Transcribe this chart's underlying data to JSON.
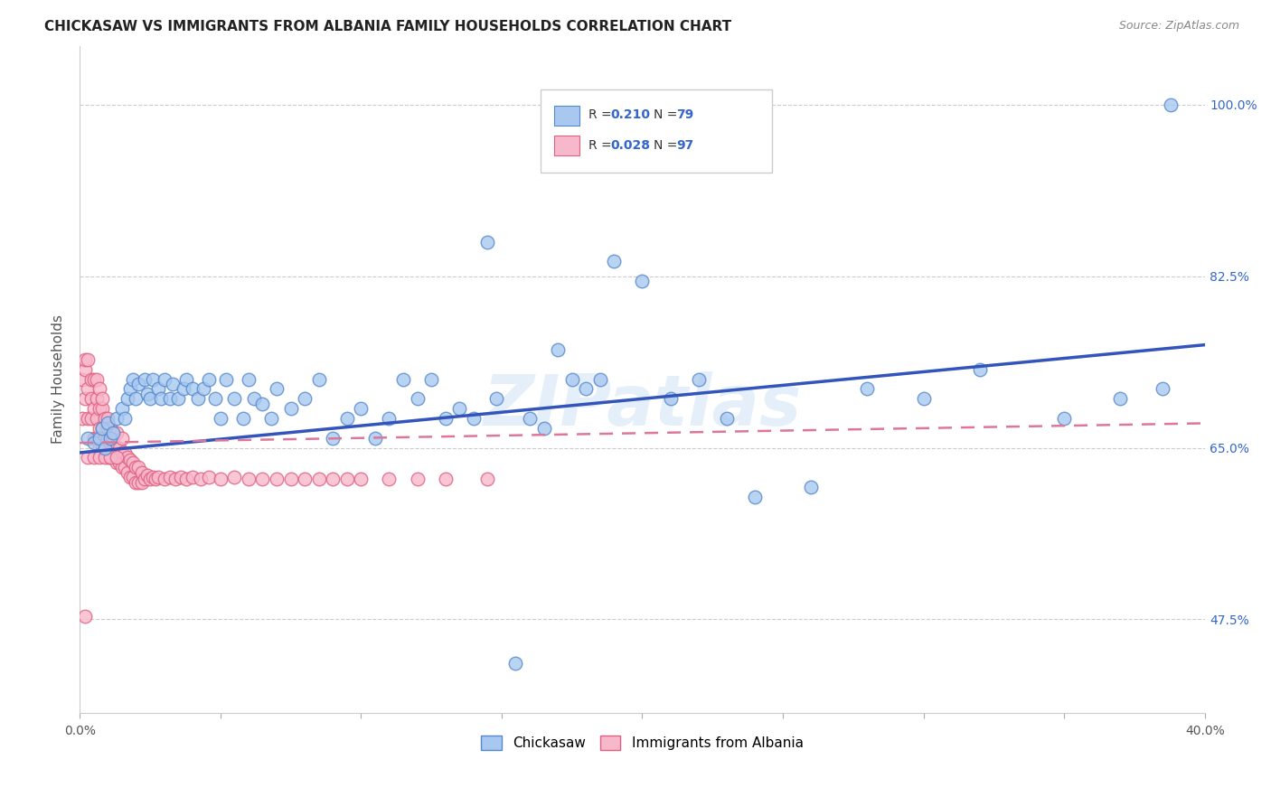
{
  "title": "CHICKASAW VS IMMIGRANTS FROM ALBANIA FAMILY HOUSEHOLDS CORRELATION CHART",
  "source": "Source: ZipAtlas.com",
  "ylabel": "Family Households",
  "watermark": "ZIPatlas",
  "legend_r1": "R = 0.210",
  "legend_n1": "N = 79",
  "legend_r2": "R = 0.028",
  "legend_n2": "N = 97",
  "blue_color": "#a8c8f0",
  "blue_edge": "#5588cc",
  "pink_color": "#f8b8cc",
  "pink_edge": "#e06080",
  "line_blue": "#3355bb",
  "line_pink": "#dd7799",
  "xlim": [
    0.0,
    0.4
  ],
  "ylim": [
    0.38,
    1.06
  ],
  "ytick_values": [
    0.475,
    0.65,
    0.825,
    1.0
  ],
  "ytick_labels": [
    "47.5%",
    "65.0%",
    "82.5%",
    "100.0%"
  ],
  "xtick_values": [
    0.0,
    0.05,
    0.1,
    0.15,
    0.2,
    0.25,
    0.3,
    0.35,
    0.4
  ],
  "blue_line_y0": 0.645,
  "blue_line_y1": 0.755,
  "pink_line_y0": 0.655,
  "pink_line_y1": 0.675,
  "chi_x": [
    0.003,
    0.005,
    0.007,
    0.008,
    0.009,
    0.01,
    0.011,
    0.012,
    0.013,
    0.015,
    0.016,
    0.017,
    0.018,
    0.019,
    0.02,
    0.021,
    0.023,
    0.024,
    0.025,
    0.026,
    0.028,
    0.029,
    0.03,
    0.032,
    0.033,
    0.035,
    0.037,
    0.038,
    0.04,
    0.042,
    0.044,
    0.046,
    0.048,
    0.05,
    0.052,
    0.055,
    0.058,
    0.06,
    0.062,
    0.065,
    0.068,
    0.07,
    0.075,
    0.08,
    0.085,
    0.09,
    0.095,
    0.1,
    0.105,
    0.11,
    0.115,
    0.12,
    0.125,
    0.13,
    0.135,
    0.14,
    0.145,
    0.148,
    0.155,
    0.16,
    0.165,
    0.17,
    0.175,
    0.18,
    0.185,
    0.19,
    0.2,
    0.21,
    0.22,
    0.23,
    0.24,
    0.26,
    0.28,
    0.3,
    0.32,
    0.35,
    0.37,
    0.385,
    0.388
  ],
  "chi_y": [
    0.66,
    0.655,
    0.66,
    0.67,
    0.65,
    0.675,
    0.66,
    0.665,
    0.68,
    0.69,
    0.68,
    0.7,
    0.71,
    0.72,
    0.7,
    0.715,
    0.72,
    0.705,
    0.7,
    0.72,
    0.71,
    0.7,
    0.72,
    0.7,
    0.715,
    0.7,
    0.71,
    0.72,
    0.71,
    0.7,
    0.71,
    0.72,
    0.7,
    0.68,
    0.72,
    0.7,
    0.68,
    0.72,
    0.7,
    0.695,
    0.68,
    0.71,
    0.69,
    0.7,
    0.72,
    0.66,
    0.68,
    0.69,
    0.66,
    0.68,
    0.72,
    0.7,
    0.72,
    0.68,
    0.69,
    0.68,
    0.86,
    0.7,
    0.43,
    0.68,
    0.67,
    0.75,
    0.72,
    0.71,
    0.72,
    0.84,
    0.82,
    0.7,
    0.72,
    0.68,
    0.6,
    0.61,
    0.71,
    0.7,
    0.73,
    0.68,
    0.7,
    0.71,
    1.0
  ],
  "alb_x": [
    0.001,
    0.001,
    0.002,
    0.002,
    0.002,
    0.003,
    0.003,
    0.003,
    0.004,
    0.004,
    0.004,
    0.005,
    0.005,
    0.005,
    0.006,
    0.006,
    0.006,
    0.006,
    0.007,
    0.007,
    0.007,
    0.007,
    0.008,
    0.008,
    0.008,
    0.008,
    0.009,
    0.009,
    0.009,
    0.01,
    0.01,
    0.01,
    0.01,
    0.011,
    0.011,
    0.011,
    0.012,
    0.012,
    0.012,
    0.013,
    0.013,
    0.013,
    0.014,
    0.014,
    0.015,
    0.015,
    0.015,
    0.016,
    0.016,
    0.017,
    0.017,
    0.018,
    0.018,
    0.019,
    0.019,
    0.02,
    0.02,
    0.021,
    0.021,
    0.022,
    0.022,
    0.023,
    0.024,
    0.025,
    0.026,
    0.027,
    0.028,
    0.03,
    0.032,
    0.034,
    0.036,
    0.038,
    0.04,
    0.043,
    0.046,
    0.05,
    0.055,
    0.06,
    0.065,
    0.07,
    0.075,
    0.08,
    0.085,
    0.09,
    0.095,
    0.1,
    0.11,
    0.12,
    0.13,
    0.145,
    0.002,
    0.003,
    0.005,
    0.007,
    0.009,
    0.011,
    0.013
  ],
  "alb_y": [
    0.68,
    0.72,
    0.7,
    0.73,
    0.74,
    0.68,
    0.71,
    0.74,
    0.68,
    0.7,
    0.72,
    0.66,
    0.69,
    0.72,
    0.66,
    0.68,
    0.7,
    0.72,
    0.65,
    0.67,
    0.69,
    0.71,
    0.65,
    0.67,
    0.69,
    0.7,
    0.65,
    0.66,
    0.68,
    0.64,
    0.66,
    0.67,
    0.68,
    0.64,
    0.655,
    0.67,
    0.64,
    0.655,
    0.665,
    0.635,
    0.65,
    0.665,
    0.635,
    0.65,
    0.63,
    0.645,
    0.66,
    0.63,
    0.645,
    0.625,
    0.64,
    0.62,
    0.638,
    0.62,
    0.635,
    0.615,
    0.63,
    0.615,
    0.63,
    0.615,
    0.625,
    0.618,
    0.622,
    0.618,
    0.62,
    0.618,
    0.62,
    0.618,
    0.62,
    0.618,
    0.62,
    0.618,
    0.62,
    0.618,
    0.62,
    0.618,
    0.62,
    0.618,
    0.618,
    0.618,
    0.618,
    0.618,
    0.618,
    0.618,
    0.618,
    0.618,
    0.618,
    0.618,
    0.618,
    0.618,
    0.478,
    0.64,
    0.64,
    0.64,
    0.64,
    0.64,
    0.64
  ]
}
